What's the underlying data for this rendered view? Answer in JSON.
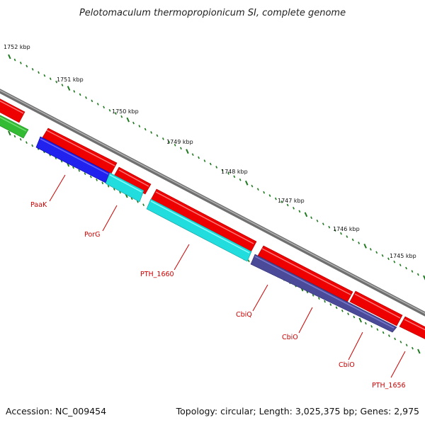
{
  "title": "Pelotomaculum thermopropionicum SI, complete genome",
  "footer": {
    "accession": "Accession: NC_009454",
    "summary": "Topology: circular; Length: 3,025,375 bp; Genes: 2,975"
  },
  "colors": {
    "backbone": "#7f7f7f",
    "forward_cds": "#ee0000",
    "reverse_cds_a": "#2222ee",
    "reverse_cds_b": "#22dddd",
    "reverse_cds_c": "#4a4a99",
    "other_feature": "#33bb33",
    "label": "#cc0000",
    "ruler": "#1f7a1f"
  },
  "ruler_labels": [
    "1752 kbp",
    "1751 kbp",
    "1750 kbp",
    "1749 kbp",
    "1748 kbp",
    "1747 kbp",
    "1746 kbp",
    "1745 kbp"
  ],
  "gene_labels": [
    "PaaK",
    "PorG",
    "PTH_1660",
    "CbiQ",
    "CbiO",
    "CbiO",
    "PTH_1656"
  ]
}
